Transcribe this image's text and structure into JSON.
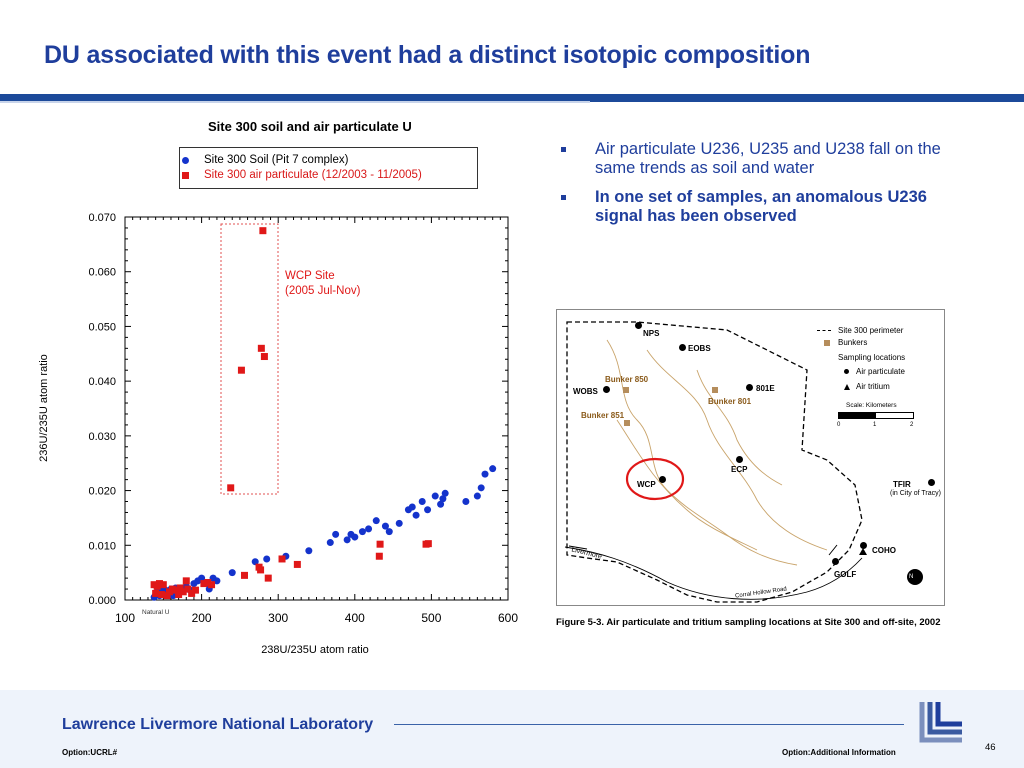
{
  "slide": {
    "title": "DU associated with this event had a distinct isotopic composition",
    "bullets": [
      "Air particulate U236, U235 and U238 fall on the same trends as soil and water",
      "In one set of samples, an anomalous U236 signal has been observed"
    ],
    "page_number": "46"
  },
  "footer": {
    "lab_name": "Lawrence Livermore National Laboratory",
    "left_option": "Option:UCRL#",
    "right_option": "Option:Additional Information"
  },
  "chart_data": {
    "type": "scatter",
    "title": "Site 300 soil and air particulate U",
    "xlabel": "238U/235U atom ratio",
    "ylabel": "236U/235U atom ratio",
    "xlim": [
      100,
      600
    ],
    "ylim": [
      0,
      0.07
    ],
    "xticks": [
      "100",
      "200",
      "300",
      "400",
      "500",
      "600"
    ],
    "yticks": [
      "0.000",
      "0.010",
      "0.020",
      "0.030",
      "0.040",
      "0.050",
      "0.060",
      "0.070"
    ],
    "annotation": "WCP Site\n(2005 Jul-Nov)",
    "annotation_line1": "WCP Site",
    "annotation_line2": "(2005 Jul-Nov)",
    "natural_label": "Natural U",
    "grid": false,
    "legend": "top",
    "colors": {
      "soil": "#1433cc",
      "air": "#e01818"
    },
    "series": [
      {
        "name": "Site 300 Soil (Pit 7 complex)",
        "marker": "circle",
        "points": [
          [
            138,
            0.0005
          ],
          [
            140,
            0.001
          ],
          [
            142,
            0.0015
          ],
          [
            145,
            0.0008
          ],
          [
            148,
            0.002
          ],
          [
            150,
            0.001
          ],
          [
            153,
            0.0018
          ],
          [
            156,
            0.0012
          ],
          [
            160,
            0.002
          ],
          [
            163,
            0.0008
          ],
          [
            166,
            0.0022
          ],
          [
            170,
            0.0015
          ],
          [
            175,
            0.002
          ],
          [
            180,
            0.0025
          ],
          [
            185,
            0.0018
          ],
          [
            190,
            0.003
          ],
          [
            195,
            0.0035
          ],
          [
            200,
            0.004
          ],
          [
            205,
            0.003
          ],
          [
            210,
            0.002
          ],
          [
            215,
            0.004
          ],
          [
            220,
            0.0035
          ],
          [
            240,
            0.005
          ],
          [
            270,
            0.007
          ],
          [
            285,
            0.0075
          ],
          [
            310,
            0.008
          ],
          [
            340,
            0.009
          ],
          [
            368,
            0.0105
          ],
          [
            375,
            0.012
          ],
          [
            390,
            0.011
          ],
          [
            395,
            0.012
          ],
          [
            400,
            0.0115
          ],
          [
            410,
            0.0125
          ],
          [
            418,
            0.013
          ],
          [
            428,
            0.0145
          ],
          [
            440,
            0.0135
          ],
          [
            445,
            0.0125
          ],
          [
            458,
            0.014
          ],
          [
            470,
            0.0165
          ],
          [
            475,
            0.017
          ],
          [
            480,
            0.0155
          ],
          [
            488,
            0.018
          ],
          [
            495,
            0.0165
          ],
          [
            505,
            0.019
          ],
          [
            512,
            0.0175
          ],
          [
            515,
            0.0185
          ],
          [
            518,
            0.0195
          ],
          [
            545,
            0.018
          ],
          [
            560,
            0.019
          ],
          [
            565,
            0.0205
          ],
          [
            570,
            0.023
          ],
          [
            580,
            0.024
          ]
        ]
      },
      {
        "name": "Site 300 air particulate (12/2003 - 11/2005)",
        "marker": "square",
        "points": [
          [
            138,
            0.0028
          ],
          [
            142,
            0.0025
          ],
          [
            145,
            0.003
          ],
          [
            150,
            0.0028
          ],
          [
            140,
            0.0012
          ],
          [
            148,
            0.001
          ],
          [
            155,
            0.0008
          ],
          [
            158,
            0.0015
          ],
          [
            162,
            0.002
          ],
          [
            165,
            0.0018
          ],
          [
            170,
            0.001
          ],
          [
            172,
            0.0022
          ],
          [
            176,
            0.0015
          ],
          [
            180,
            0.0035
          ],
          [
            182,
            0.002
          ],
          [
            187,
            0.0012
          ],
          [
            192,
            0.0018
          ],
          [
            203,
            0.003
          ],
          [
            208,
            0.0032
          ],
          [
            213,
            0.0028
          ],
          [
            238,
            0.0205
          ],
          [
            252,
            0.042
          ],
          [
            256,
            0.0045
          ],
          [
            275,
            0.006
          ],
          [
            277,
            0.0055
          ],
          [
            278,
            0.046
          ],
          [
            280,
            0.0675
          ],
          [
            282,
            0.0445
          ],
          [
            287,
            0.004
          ],
          [
            305,
            0.0075
          ],
          [
            325,
            0.0065
          ],
          [
            432,
            0.008
          ],
          [
            433,
            0.0102
          ],
          [
            493,
            0.0102
          ],
          [
            496,
            0.0103
          ]
        ]
      }
    ]
  },
  "map": {
    "caption": "Figure 5-3. Air particulate and tritium sampling locations at Site 300 and off-site, 2002",
    "legend": {
      "perimeter": "Site 300 perimeter",
      "bunkers": "Bunkers",
      "sampling": "Sampling locations",
      "air": "Air particulate",
      "tritium": "Air tritium",
      "scale_title": "Scale: Kilometers",
      "scale_ticks": [
        "0",
        "1",
        "2"
      ]
    },
    "labels": {
      "nps": "NPS",
      "eobs": "EOBS",
      "wobs": "WOBS",
      "e801": "801E",
      "b850": "Bunker 850",
      "b801": "Bunker 801",
      "b851": "Bunker 851",
      "wcp": "WCP",
      "ecp": "ECP",
      "tfir": "TFIR",
      "tfir_sub": "(in City of Tracy)",
      "coho": "COHO",
      "golf": "GOLF",
      "livermore": "Livermore",
      "road": "Corral Hollow Road",
      "north": "N"
    }
  }
}
